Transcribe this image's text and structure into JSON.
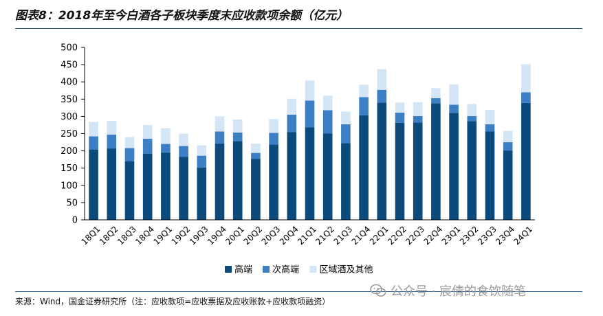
{
  "title": "图表8：2018年至今白酒各子板块季度末应收款项余额（亿元）",
  "source": "来源：Wind，国金证券研究所（注：应收款项=应收票据及应收账款+应收款项融资）",
  "watermark": "公众号 · 宸倩的食饮随笔",
  "colors": {
    "高端": "#0b4a7a",
    "次高端": "#3d7fc4",
    "区域酒及其他": "#d4e6f6"
  },
  "chart_data": {
    "type": "bar",
    "stacked": true,
    "title": "2018年至今白酒各子板块季度末应收款项余额（亿元）",
    "xlabel": "",
    "ylabel": "",
    "ylim": [
      0,
      500
    ],
    "yticks": [
      0,
      50,
      100,
      150,
      200,
      250,
      300,
      350,
      400,
      450,
      500
    ],
    "legend_position": "bottom",
    "categories": [
      "18Q1",
      "18Q2",
      "18Q3",
      "18Q4",
      "19Q1",
      "19Q2",
      "19Q3",
      "19Q4",
      "20Q1",
      "20Q2",
      "20Q3",
      "20Q4",
      "21Q1",
      "21Q2",
      "21Q3",
      "21Q4",
      "22Q1",
      "22Q2",
      "22Q3",
      "22Q4",
      "23Q1",
      "23Q2",
      "23Q3",
      "23Q4",
      "24Q1"
    ],
    "series": [
      {
        "name": "高端",
        "values": [
          204,
          207,
          170,
          192,
          195,
          183,
          152,
          221,
          228,
          177,
          218,
          254,
          268,
          250,
          222,
          303,
          340,
          281,
          282,
          338,
          310,
          286,
          256,
          201,
          339
        ]
      },
      {
        "name": "次高端",
        "values": [
          38,
          40,
          38,
          43,
          25,
          31,
          34,
          35,
          25,
          17,
          34,
          51,
          78,
          68,
          55,
          53,
          37,
          30,
          19,
          15,
          24,
          15,
          21,
          24,
          31
        ]
      },
      {
        "name": "区域酒及其他",
        "values": [
          42,
          40,
          32,
          40,
          46,
          36,
          30,
          44,
          38,
          27,
          40,
          46,
          58,
          42,
          37,
          36,
          60,
          29,
          40,
          29,
          59,
          35,
          42,
          33,
          81
        ]
      }
    ]
  }
}
